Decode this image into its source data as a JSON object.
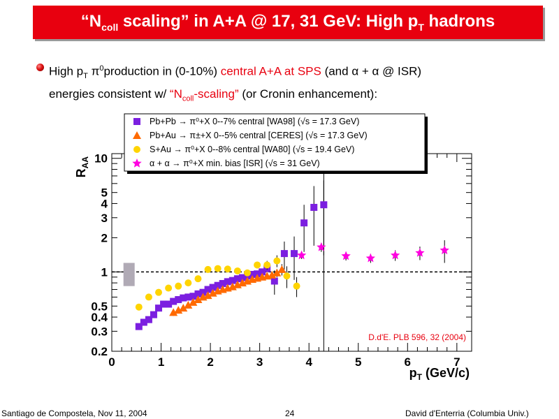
{
  "slide": {
    "title_pre": "“N",
    "title_sub": "coll",
    "title_mid": " scaling” in A+A @ 17, 31 GeV: High p",
    "title_sub2": "T",
    "title_post": " hadrons",
    "bullet": {
      "p1": "High p",
      "p1_sub": "T",
      "p1b": " π",
      "p1_sup": "0",
      "p2": "production in (0-10%) ",
      "p3_red": "central A+A at SPS",
      "p4": " (and α + α  @ ISR)",
      "p5": "energies consistent w/  ",
      "p6_red_a": "“N",
      "p6_red_sub": "coll",
      "p6_red_b": "-scaling”",
      "p7": " (or Cronin enhancement):"
    },
    "footer_left": "Santiago de Compostela, Nov 11, 2004",
    "page_number": "24",
    "footer_right": "David d'Enterria (Columbia Univ.)"
  },
  "chart_data": {
    "type": "scatter",
    "xlabel": "p",
    "xlabel_sub": "T",
    "xlabel_unit": " (GeV/c)",
    "ylabel": "R",
    "ylabel_sub": "AA",
    "xlim": [
      0,
      7.3
    ],
    "ylim": [
      0.2,
      11
    ],
    "ylog": true,
    "xticks": [
      0,
      1,
      2,
      3,
      4,
      5,
      6,
      7
    ],
    "yticks": [
      0.2,
      0.3,
      0.4,
      0.5,
      1,
      2,
      3,
      4,
      5,
      10
    ],
    "ytick_labels": [
      "0.2",
      "0.3",
      "0.4",
      "0.5",
      "1",
      "2",
      "3",
      "4",
      "5",
      "10"
    ],
    "reference_line_y": 1,
    "vertical_line_x": 4.3,
    "annotation": "D.d'E. PLB 596, 32 (2004)",
    "norm_box": {
      "x": 0.35,
      "ylow": 0.75,
      "yhigh": 1.2
    },
    "legend": [
      {
        "marker": "square",
        "color": "#7b1fe0",
        "label": "Pb+Pb → π⁰+X  0--7%  central [WA98] (√s = 17.3 GeV)"
      },
      {
        "marker": "triangle",
        "color": "#ff6a00",
        "label": "Pb+Au → π±+X  0--5% central [CERES] (√s = 17.3 GeV)"
      },
      {
        "marker": "circle",
        "color": "#ffd400",
        "label": "S+Au → π⁰+X 0--8%  central [WA80] (√s = 19.4 GeV)"
      },
      {
        "marker": "star",
        "color": "#ff00e0",
        "label": "α + α → π⁰+X min. bias [ISR] (√s = 31 GeV)"
      }
    ],
    "series": [
      {
        "name": "Pb+Pb WA98",
        "marker": "square",
        "color": "#7b1fe0",
        "x": [
          0.55,
          0.65,
          0.75,
          0.85,
          0.95,
          1.05,
          1.15,
          1.25,
          1.35,
          1.45,
          1.55,
          1.65,
          1.75,
          1.85,
          1.95,
          2.05,
          2.15,
          2.25,
          2.35,
          2.45,
          2.55,
          2.65,
          2.75,
          2.85,
          2.95,
          3.05,
          3.15,
          3.3,
          3.5,
          3.7,
          3.9,
          4.1,
          4.3
        ],
        "y": [
          0.33,
          0.36,
          0.38,
          0.42,
          0.48,
          0.52,
          0.52,
          0.55,
          0.57,
          0.59,
          0.6,
          0.61,
          0.64,
          0.66,
          0.7,
          0.73,
          0.76,
          0.79,
          0.82,
          0.84,
          0.87,
          0.89,
          0.92,
          0.95,
          0.96,
          1.0,
          1.07,
          0.83,
          1.45,
          1.45,
          2.7,
          3.7,
          3.9
        ],
        "err": [
          0.02,
          0.02,
          0.02,
          0.02,
          0.02,
          0.02,
          0.02,
          0.02,
          0.02,
          0.02,
          0.02,
          0.02,
          0.02,
          0.02,
          0.02,
          0.02,
          0.03,
          0.03,
          0.03,
          0.03,
          0.04,
          0.04,
          0.04,
          0.05,
          0.05,
          0.06,
          0.08,
          0.2,
          0.4,
          0.6,
          1.2,
          2.0,
          2.5
        ]
      },
      {
        "name": "Pb+Au CERES",
        "marker": "triangle",
        "color": "#ff6a00",
        "x": [
          1.25,
          1.35,
          1.45,
          1.55,
          1.65,
          1.75,
          1.85,
          1.95,
          2.05,
          2.15,
          2.25,
          2.35,
          2.45,
          2.55,
          2.65,
          2.75,
          2.85,
          2.95,
          3.05,
          3.15,
          3.25,
          3.35,
          3.45
        ],
        "y": [
          0.44,
          0.46,
          0.48,
          0.51,
          0.54,
          0.57,
          0.6,
          0.62,
          0.65,
          0.68,
          0.7,
          0.72,
          0.74,
          0.77,
          0.8,
          0.83,
          0.86,
          0.88,
          0.9,
          0.92,
          0.94,
          0.98,
          1.05
        ],
        "err": [
          0.03,
          0.03,
          0.03,
          0.03,
          0.03,
          0.03,
          0.03,
          0.03,
          0.03,
          0.03,
          0.03,
          0.03,
          0.04,
          0.04,
          0.04,
          0.04,
          0.05,
          0.05,
          0.05,
          0.06,
          0.06,
          0.08,
          0.12
        ]
      },
      {
        "name": "S+Au WA80",
        "marker": "circle",
        "color": "#ffd400",
        "x": [
          0.55,
          0.75,
          0.95,
          1.15,
          1.35,
          1.55,
          1.75,
          1.95,
          2.15,
          2.35,
          2.55,
          2.75,
          2.95,
          3.15,
          3.35,
          3.55,
          3.75
        ],
        "y": [
          0.49,
          0.6,
          0.66,
          0.72,
          0.75,
          0.8,
          0.87,
          1.05,
          1.07,
          1.06,
          1.02,
          0.98,
          1.15,
          1.15,
          1.25,
          0.92,
          0.75
        ],
        "err": [
          0.02,
          0.02,
          0.02,
          0.02,
          0.03,
          0.03,
          0.03,
          0.04,
          0.04,
          0.05,
          0.05,
          0.06,
          0.08,
          0.1,
          0.15,
          0.2,
          0.15
        ]
      },
      {
        "name": "alpha+alpha ISR",
        "marker": "star",
        "color": "#ff00e0",
        "x": [
          3.85,
          4.25,
          4.75,
          5.25,
          5.75,
          6.25,
          6.75
        ],
        "y": [
          1.4,
          1.65,
          1.38,
          1.32,
          1.4,
          1.47,
          1.55
        ],
        "err": [
          0.1,
          0.15,
          0.12,
          0.12,
          0.15,
          0.2,
          0.35
        ]
      }
    ]
  }
}
